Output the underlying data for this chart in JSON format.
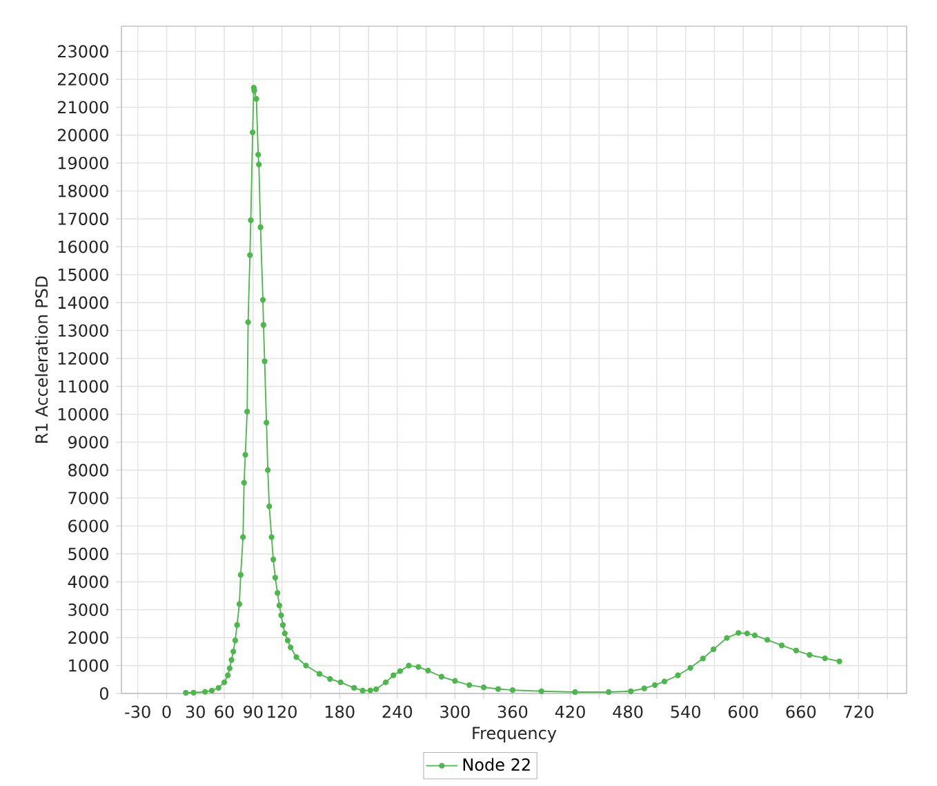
{
  "chart_data": {
    "type": "line",
    "xlabel": "Frequency",
    "ylabel": "R1 Acceleration PSD",
    "xlim": [
      -47,
      770
    ],
    "ylim": [
      0,
      23900
    ],
    "xticks": [
      -30,
      0,
      30,
      60,
      90,
      120,
      {
        "value": 150,
        "label": null
      },
      180,
      {
        "value": 210,
        "label": null
      },
      240,
      {
        "value": 270,
        "label": null
      },
      300,
      {
        "value": 330,
        "label": null
      },
      360,
      {
        "value": 390,
        "label": null
      },
      420,
      {
        "value": 450,
        "label": null
      },
      480,
      {
        "value": 510,
        "label": null
      },
      540,
      {
        "value": 570,
        "label": null
      },
      600,
      {
        "value": 630,
        "label": null
      },
      660,
      {
        "value": 690,
        "label": null
      },
      720,
      {
        "value": 750,
        "label": null
      }
    ],
    "yticks": [
      0,
      1000,
      2000,
      3000,
      4000,
      5000,
      6000,
      7000,
      8000,
      9000,
      10000,
      11000,
      12000,
      13000,
      14000,
      15000,
      16000,
      17000,
      18000,
      19000,
      20000,
      21000,
      22000,
      23000
    ],
    "grid": true,
    "legend": "bottom",
    "marker": "circle",
    "x": [
      20,
      28,
      40,
      47,
      54,
      60,
      63.7,
      65.6,
      67.5,
      69.4,
      71.4,
      73.3,
      75.7,
      77.1,
      79.5,
      80.6,
      81.9,
      83.8,
      84.8,
      86.7,
      87.6,
      89.5,
      90.7,
      91.2,
      93.4,
      95.3,
      96,
      97.7,
      100.2,
      100.8,
      102,
      103.9,
      105.3,
      106.8,
      109.2,
      111,
      113,
      115.4,
      117.3,
      119.2,
      121,
      123,
      126,
      129,
      135,
      145,
      159,
      170,
      181,
      195,
      204,
      212,
      218,
      228,
      236,
      243,
      252,
      262,
      272,
      286,
      300,
      315,
      330,
      345,
      360,
      390,
      425,
      460,
      483,
      497,
      508,
      518,
      532,
      545,
      558,
      569,
      583,
      595,
      604,
      612,
      625,
      640,
      655,
      669,
      685,
      700
    ],
    "series": [
      {
        "name": "Node 22",
        "color": "#4cb84c",
        "values": [
          20,
          30,
          60,
          100,
          200,
          400,
          650,
          900,
          1200,
          1500,
          1900,
          2450,
          3200,
          4250,
          5600,
          7550,
          8550,
          10100,
          13300,
          15700,
          16950,
          20100,
          21700,
          21600,
          21300,
          19300,
          18950,
          16700,
          14100,
          13200,
          11900,
          9700,
          8000,
          6700,
          5600,
          4800,
          4150,
          3600,
          3150,
          2800,
          2450,
          2150,
          1900,
          1650,
          1300,
          1000,
          700,
          520,
          400,
          200,
          100,
          110,
          150,
          400,
          650,
          800,
          1000,
          950,
          820,
          600,
          450,
          300,
          220,
          160,
          120,
          80,
          50,
          50,
          80,
          180,
          300,
          430,
          650,
          920,
          1250,
          1580,
          1990,
          2170,
          2150,
          2080,
          1920,
          1720,
          1540,
          1380,
          1260,
          1150
        ]
      }
    ]
  }
}
